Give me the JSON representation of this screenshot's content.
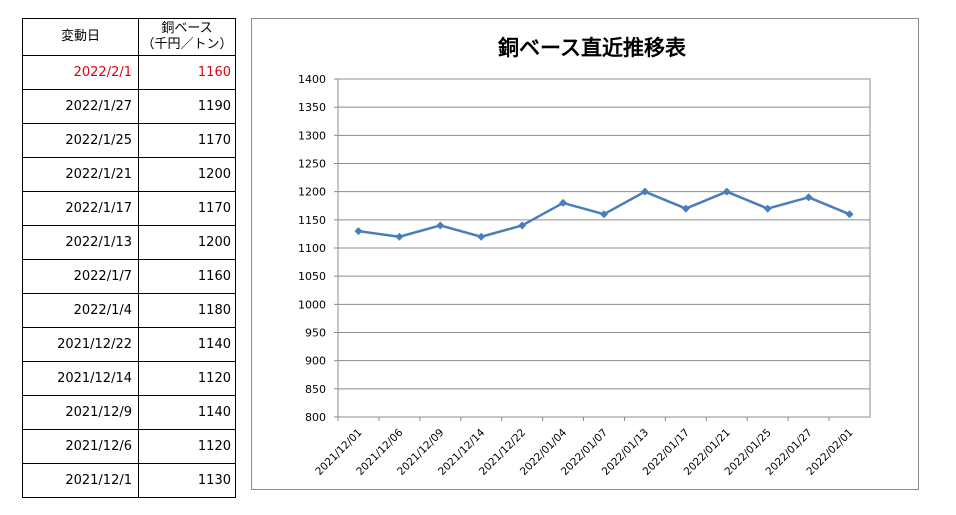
{
  "table": {
    "header_date": "変動日",
    "header_value_line1": "銅ベース",
    "header_value_line2": "（千円／トン）",
    "rows": [
      {
        "date": "2022/2/1",
        "value": "1160",
        "latest": true
      },
      {
        "date": "2022/1/27",
        "value": "1190"
      },
      {
        "date": "2022/1/25",
        "value": "1170"
      },
      {
        "date": "2022/1/21",
        "value": "1200"
      },
      {
        "date": "2022/1/17",
        "value": "1170"
      },
      {
        "date": "2022/1/13",
        "value": "1200"
      },
      {
        "date": "2022/1/7",
        "value": "1160"
      },
      {
        "date": "2022/1/4",
        "value": "1180"
      },
      {
        "date": "2021/12/22",
        "value": "1140"
      },
      {
        "date": "2021/12/14",
        "value": "1120"
      },
      {
        "date": "2021/12/9",
        "value": "1140"
      },
      {
        "date": "2021/12/6",
        "value": "1120"
      },
      {
        "date": "2021/12/1",
        "value": "1130"
      }
    ],
    "latest_color": "#e0000f"
  },
  "chart_data": {
    "type": "line",
    "title": "銅ベース直近推移表",
    "categories": [
      "2021/12/01",
      "2021/12/06",
      "2021/12/09",
      "2021/12/14",
      "2021/12/22",
      "2022/01/04",
      "2022/01/07",
      "2022/01/13",
      "2022/01/17",
      "2022/01/21",
      "2022/01/25",
      "2022/01/27",
      "2022/02/01"
    ],
    "series": [
      {
        "values": [
          1130,
          1120,
          1140,
          1120,
          1140,
          1180,
          1160,
          1200,
          1170,
          1200,
          1170,
          1190,
          1160
        ],
        "color": "#4a7ebb",
        "marker": "diamond"
      }
    ],
    "ylim": [
      800,
      1400
    ],
    "yticks": [
      800,
      850,
      900,
      950,
      1000,
      1050,
      1100,
      1150,
      1200,
      1250,
      1300,
      1350,
      1400
    ],
    "grid": true,
    "legend": "none",
    "xlabel": "",
    "ylabel": ""
  }
}
